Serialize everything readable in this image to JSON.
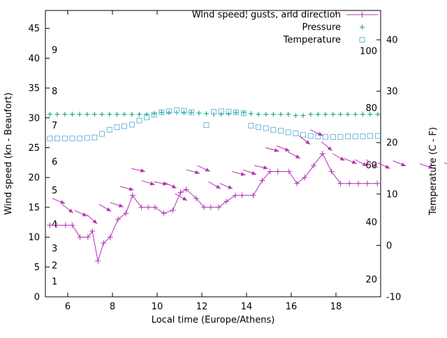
{
  "chart_data": {
    "type": "line",
    "colors": {
      "background": "#ffffff",
      "axis": "#000000",
      "wind": "#b233b2",
      "pressure": "#00a27a",
      "temperature": "#6db8d8"
    },
    "x_axis": {
      "label": "Local time (Europe/Athens)",
      "range": [
        5,
        20
      ],
      "ticks": [
        6,
        8,
        10,
        12,
        14,
        16,
        18
      ]
    },
    "y_left": {
      "label": "Wind speed (kn - Beaufort)",
      "range": [
        0,
        48
      ],
      "ticks": [
        0,
        5,
        10,
        15,
        20,
        25,
        30,
        35,
        40,
        45
      ],
      "beaufort_labels": [
        {
          "text": "1",
          "kn": 2.5
        },
        {
          "text": "2",
          "kn": 5.2
        },
        {
          "text": "3",
          "kn": 8.1
        },
        {
          "text": "4",
          "kn": 12.1
        },
        {
          "text": "5",
          "kn": 17.8
        },
        {
          "text": "6",
          "kn": 22.6
        },
        {
          "text": "7",
          "kn": 28.7
        },
        {
          "text": "8",
          "kn": 34.4
        },
        {
          "text": "9",
          "kn": 41.3
        }
      ]
    },
    "y_right": {
      "label": "Temperature (C - F)",
      "ticks_c": [
        -10,
        0,
        10,
        20,
        30,
        40
      ],
      "fahrenheit_labels": [
        20,
        40,
        60,
        80,
        100
      ]
    },
    "legend": [
      {
        "label": "Wind speed, gusts, and direction",
        "marker": "line-plus",
        "color": "#b233b2"
      },
      {
        "label": "Pressure",
        "marker": "plus",
        "color": "#00a27a"
      },
      {
        "label": "Temperature",
        "marker": "square",
        "color": "#6db8d8"
      }
    ],
    "series": {
      "wind_speed_kn": {
        "color": "#b233b2",
        "points": [
          [
            5.2,
            12
          ],
          [
            5.5,
            12
          ],
          [
            5.9,
            12
          ],
          [
            6.2,
            12
          ],
          [
            6.55,
            10
          ],
          [
            6.9,
            10
          ],
          [
            7.1,
            11
          ],
          [
            7.35,
            6
          ],
          [
            7.6,
            9
          ],
          [
            7.9,
            10
          ],
          [
            8.25,
            13
          ],
          [
            8.6,
            14
          ],
          [
            8.9,
            17
          ],
          [
            9.3,
            15
          ],
          [
            9.6,
            15
          ],
          [
            9.9,
            15
          ],
          [
            10.3,
            14
          ],
          [
            10.7,
            14.5
          ],
          [
            11.05,
            17.5
          ],
          [
            11.3,
            18
          ],
          [
            11.75,
            16.5
          ],
          [
            12.1,
            15
          ],
          [
            12.4,
            15
          ],
          [
            12.75,
            15
          ],
          [
            13.1,
            16
          ],
          [
            13.5,
            17
          ],
          [
            13.8,
            17
          ],
          [
            14.3,
            17
          ],
          [
            14.7,
            19.5
          ],
          [
            15.05,
            21
          ],
          [
            15.4,
            21
          ],
          [
            15.9,
            21
          ],
          [
            16.25,
            19
          ],
          [
            16.6,
            20
          ],
          [
            17.0,
            22
          ],
          [
            17.4,
            24
          ],
          [
            17.8,
            21
          ],
          [
            18.2,
            19
          ],
          [
            18.6,
            19
          ],
          [
            19.0,
            19
          ],
          [
            19.4,
            19
          ],
          [
            19.85,
            19
          ]
        ]
      },
      "wind_gusts_direction": {
        "color": "#b233b2",
        "arrows": [
          [
            5.3,
            16.5,
            22
          ],
          [
            5.75,
            15.5,
            38
          ],
          [
            6.3,
            14.5,
            25
          ],
          [
            6.85,
            13.8,
            42
          ],
          [
            7.4,
            15.5,
            30
          ],
          [
            7.9,
            15.8,
            18
          ],
          [
            8.35,
            18.5,
            15
          ],
          [
            8.85,
            21.5,
            12
          ],
          [
            9.3,
            19.5,
            18
          ],
          [
            9.85,
            19.3,
            12
          ],
          [
            10.3,
            19.2,
            25
          ],
          [
            10.8,
            17.3,
            30
          ],
          [
            11.3,
            21.3,
            15
          ],
          [
            11.8,
            22.0,
            25
          ],
          [
            12.3,
            19.3,
            30
          ],
          [
            12.8,
            19.0,
            22
          ],
          [
            13.35,
            21.0,
            15
          ],
          [
            13.85,
            21.3,
            20
          ],
          [
            14.35,
            22.0,
            12
          ],
          [
            14.85,
            25.0,
            15
          ],
          [
            15.35,
            25.3,
            22
          ],
          [
            15.85,
            24.3,
            28
          ],
          [
            16.35,
            27.0,
            38
          ],
          [
            16.85,
            28.0,
            25
          ],
          [
            17.35,
            26.0,
            40
          ],
          [
            17.85,
            24.0,
            30
          ],
          [
            18.35,
            23.2,
            22
          ],
          [
            18.85,
            23.0,
            28
          ],
          [
            19.35,
            23.0,
            35
          ],
          [
            19.85,
            22.5,
            25
          ],
          [
            20.55,
            22.8,
            22
          ],
          [
            21.75,
            22.3,
            18
          ],
          [
            22.85,
            22.5,
            25
          ]
        ]
      },
      "pressure": {
        "color": "#00a27a",
        "points": [
          [
            5.2,
            30.6
          ],
          [
            5.53,
            30.6
          ],
          [
            5.87,
            30.6
          ],
          [
            6.2,
            30.6
          ],
          [
            6.53,
            30.6
          ],
          [
            6.87,
            30.6
          ],
          [
            7.2,
            30.6
          ],
          [
            7.53,
            30.6
          ],
          [
            7.87,
            30.6
          ],
          [
            8.2,
            30.6
          ],
          [
            8.53,
            30.6
          ],
          [
            8.87,
            30.6
          ],
          [
            9.2,
            30.6
          ],
          [
            9.53,
            30.6
          ],
          [
            9.87,
            30.7
          ],
          [
            10.2,
            30.9
          ],
          [
            10.53,
            30.9
          ],
          [
            10.87,
            30.9
          ],
          [
            11.2,
            30.9
          ],
          [
            11.53,
            30.9
          ],
          [
            11.87,
            30.8
          ],
          [
            12.2,
            30.7
          ],
          [
            12.53,
            30.6
          ],
          [
            12.87,
            30.6
          ],
          [
            13.2,
            30.7
          ],
          [
            13.53,
            30.9
          ],
          [
            13.87,
            30.9
          ],
          [
            14.2,
            30.7
          ],
          [
            14.53,
            30.6
          ],
          [
            14.87,
            30.6
          ],
          [
            15.2,
            30.6
          ],
          [
            15.53,
            30.6
          ],
          [
            15.87,
            30.6
          ],
          [
            16.2,
            30.4
          ],
          [
            16.53,
            30.4
          ],
          [
            16.87,
            30.6
          ],
          [
            17.2,
            30.6
          ],
          [
            17.53,
            30.6
          ],
          [
            17.87,
            30.6
          ],
          [
            18.2,
            30.6
          ],
          [
            18.53,
            30.6
          ],
          [
            18.87,
            30.6
          ],
          [
            19.2,
            30.6
          ],
          [
            19.53,
            30.6
          ],
          [
            19.87,
            30.6
          ]
        ]
      },
      "temperature_c": {
        "color": "#6db8d8",
        "points": [
          [
            5.2,
            20.8
          ],
          [
            5.53,
            20.8
          ],
          [
            5.87,
            20.8
          ],
          [
            6.2,
            20.8
          ],
          [
            6.53,
            20.8
          ],
          [
            6.87,
            20.9
          ],
          [
            7.2,
            21.0
          ],
          [
            7.53,
            21.7
          ],
          [
            7.87,
            22.5
          ],
          [
            8.2,
            23.0
          ],
          [
            8.53,
            23.2
          ],
          [
            8.87,
            23.5
          ],
          [
            9.2,
            24.3
          ],
          [
            9.53,
            24.9
          ],
          [
            9.87,
            25.4
          ],
          [
            10.2,
            25.9
          ],
          [
            10.53,
            26.1
          ],
          [
            10.87,
            26.3
          ],
          [
            11.2,
            26.2
          ],
          [
            11.53,
            25.9
          ],
          [
            12.2,
            23.4
          ],
          [
            12.53,
            26.0
          ],
          [
            12.87,
            26.1
          ],
          [
            13.2,
            26.0
          ],
          [
            13.53,
            25.9
          ],
          [
            13.87,
            25.7
          ],
          [
            14.2,
            23.3
          ],
          [
            14.53,
            23.0
          ],
          [
            14.87,
            22.8
          ],
          [
            15.2,
            22.5
          ],
          [
            15.53,
            22.3
          ],
          [
            15.87,
            22.0
          ],
          [
            16.2,
            21.8
          ],
          [
            16.53,
            21.5
          ],
          [
            16.87,
            21.3
          ],
          [
            17.2,
            21.2
          ],
          [
            17.53,
            21.1
          ],
          [
            17.87,
            21.1
          ],
          [
            18.2,
            21.1
          ],
          [
            18.53,
            21.2
          ],
          [
            18.87,
            21.2
          ],
          [
            19.2,
            21.2
          ],
          [
            19.53,
            21.3
          ],
          [
            19.87,
            21.3
          ]
        ]
      }
    }
  }
}
